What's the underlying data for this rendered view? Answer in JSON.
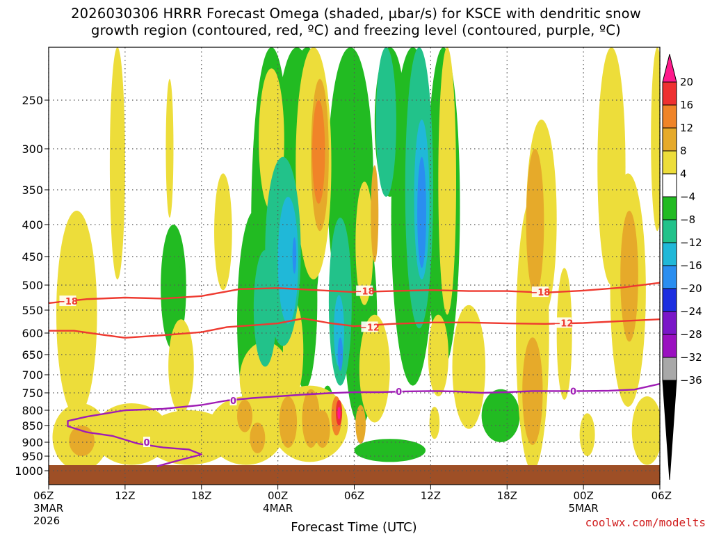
{
  "title": {
    "line1": "2026030306 HRRR Forecast Omega (shaded, µbar/s) for KSCE with dendritic snow",
    "line2": "growth region (contoured, red, ºC) and freezing level (contoured, purple, ºC)"
  },
  "credit": "coolwx.com/modelts",
  "chart_data": {
    "type": "heatmap",
    "title": "2026030306 HRRR Forecast Omega (shaded, µbar/s) for KSCE with dendritic snow growth region (contoured, red, ºC) and freezing level (contoured, purple, ºC)",
    "xlabel": "Forecast Time (UTC)",
    "ylabel": "",
    "x_forecast_hours_range": [
      0,
      48
    ],
    "y_pressure_range_hPa": [
      1000,
      200
    ],
    "y_ticks": [
      250,
      300,
      350,
      400,
      450,
      500,
      550,
      600,
      650,
      700,
      750,
      800,
      850,
      900,
      950,
      1000
    ],
    "x_ticks": [
      {
        "hour": 0,
        "label": "06Z",
        "date": "3MAR",
        "year": "2026"
      },
      {
        "hour": 6,
        "label": "12Z"
      },
      {
        "hour": 12,
        "label": "18Z"
      },
      {
        "hour": 18,
        "label": "00Z",
        "date": "4MAR"
      },
      {
        "hour": 24,
        "label": "06Z"
      },
      {
        "hour": 30,
        "label": "12Z"
      },
      {
        "hour": 36,
        "label": "18Z"
      },
      {
        "hour": 42,
        "label": "00Z",
        "date": "5MAR"
      },
      {
        "hour": 48,
        "label": "06Z"
      }
    ],
    "colorbar": {
      "levels": [
        "20",
        "16",
        "12",
        "8",
        "4",
        "−4",
        "−8",
        "−12",
        "−16",
        "−20",
        "−24",
        "−28",
        "−32",
        "−36"
      ],
      "colors": [
        "#ff1a8c",
        "#ee3030",
        "#f08428",
        "#e6aa2a",
        "#eddd3a",
        "#ffffff",
        "#22bb22",
        "#22c28a",
        "#20b8d8",
        "#2a8ef0",
        "#1c2ee0",
        "#7a16c8",
        "#9a10c0",
        "#a8a8a8",
        "#000000"
      ]
    },
    "contours": [
      {
        "name": "dendritic top",
        "value": -18,
        "label": "−18",
        "color": "#ee3a30",
        "points": [
          [
            0,
            536
          ],
          [
            3,
            528
          ],
          [
            6,
            525
          ],
          [
            9,
            527
          ],
          [
            12,
            522
          ],
          [
            15,
            508
          ],
          [
            18,
            506
          ],
          [
            21,
            510
          ],
          [
            24,
            514
          ],
          [
            27,
            512
          ],
          [
            30,
            510
          ],
          [
            33,
            512
          ],
          [
            36,
            512
          ],
          [
            39,
            515
          ],
          [
            42,
            511
          ],
          [
            45,
            505
          ],
          [
            48,
            496
          ]
        ]
      },
      {
        "name": "dendritic bottom",
        "value": -12,
        "label": "−12",
        "color": "#ee3a30",
        "points": [
          [
            0,
            595
          ],
          [
            2,
            595
          ],
          [
            4,
            603
          ],
          [
            6,
            611
          ],
          [
            9,
            605
          ],
          [
            12,
            598
          ],
          [
            14,
            587
          ],
          [
            16,
            583
          ],
          [
            18,
            579
          ],
          [
            20,
            568
          ],
          [
            22,
            578
          ],
          [
            24,
            585
          ],
          [
            27,
            580
          ],
          [
            30,
            577
          ],
          [
            33,
            577
          ],
          [
            36,
            579
          ],
          [
            39,
            580
          ],
          [
            42,
            578
          ],
          [
            45,
            574
          ],
          [
            48,
            570
          ]
        ]
      },
      {
        "name": "freezing level",
        "value": 0,
        "label": "0",
        "color": "#9f1cb5",
        "points": [
          [
            12,
            785
          ],
          [
            14,
            772
          ],
          [
            16,
            765
          ],
          [
            18,
            760
          ],
          [
            20,
            755
          ],
          [
            22,
            751
          ],
          [
            24,
            748
          ],
          [
            26,
            748
          ],
          [
            28,
            746
          ],
          [
            30,
            745
          ],
          [
            32,
            746
          ],
          [
            34,
            750
          ],
          [
            36,
            748
          ],
          [
            38,
            745
          ],
          [
            40,
            745
          ],
          [
            42,
            745
          ],
          [
            44,
            744
          ],
          [
            46,
            741
          ],
          [
            48,
            725
          ]
        ]
      },
      {
        "name": "freezing level low loop",
        "value": 0,
        "label": "0",
        "color": "#9f1cb5",
        "points": [
          [
            8.5,
            985
          ],
          [
            10,
            967
          ],
          [
            12,
            944
          ],
          [
            11,
            926
          ],
          [
            9,
            919
          ],
          [
            7,
            905
          ],
          [
            5,
            881
          ],
          [
            3,
            870
          ],
          [
            1.5,
            852
          ],
          [
            1.5,
            835
          ],
          [
            3,
            821
          ],
          [
            6,
            800
          ],
          [
            9,
            796
          ],
          [
            12,
            785
          ]
        ]
      }
    ],
    "contour_labels": [
      {
        "text": "−18",
        "hour": 1.5,
        "hPa": 532
      },
      {
        "text": "−18",
        "hour": 24.8,
        "hPa": 512
      },
      {
        "text": "−18",
        "hour": 38.6,
        "hPa": 514
      },
      {
        "text": "−12",
        "hour": 25.2,
        "hPa": 587
      },
      {
        "text": "−12",
        "hour": 40.4,
        "hPa": 578
      },
      {
        "text": "0",
        "hour": 14.5,
        "hPa": 772
      },
      {
        "text": "0",
        "hour": 27.5,
        "hPa": 746
      },
      {
        "text": "0",
        "hour": 41.2,
        "hPa": 745
      },
      {
        "text": "0",
        "hour": 7.7,
        "hPa": 900
      }
    ],
    "omega_features": [
      {
        "hour": 17.5,
        "hPa": 480,
        "rx": 1.6,
        "ry": 310,
        "value": -8
      },
      {
        "hour": 16.2,
        "hPa": 620,
        "rx": 1.4,
        "ry": 240,
        "value": -8
      },
      {
        "hour": 19.5,
        "hPa": 400,
        "rx": 1.9,
        "ry": 260,
        "value": -8
      },
      {
        "hour": 20.3,
        "hPa": 280,
        "rx": 1.5,
        "ry": 130,
        "value": -8
      },
      {
        "hour": 23.7,
        "hPa": 330,
        "rx": 1.8,
        "ry": 240,
        "value": -8
      },
      {
        "hour": 24.5,
        "hPa": 620,
        "rx": 1.3,
        "ry": 230,
        "value": -8
      },
      {
        "hour": 28.6,
        "hPa": 380,
        "rx": 1.7,
        "ry": 350,
        "value": -8
      },
      {
        "hour": 31.0,
        "hPa": 420,
        "rx": 1.3,
        "ry": 260,
        "value": -8
      },
      {
        "hour": 26.8,
        "hPa": 250,
        "rx": 1.2,
        "ry": 110,
        "value": -8
      },
      {
        "hour": 20.1,
        "hPa": 560,
        "rx": 1.0,
        "ry": 180,
        "value": -8
      },
      {
        "hour": 9.8,
        "hPa": 520,
        "rx": 1.0,
        "ry": 120,
        "value": -8
      },
      {
        "hour": 35.5,
        "hPa": 820,
        "rx": 1.5,
        "ry": 80,
        "value": -8
      },
      {
        "hour": 26.8,
        "hPa": 930,
        "rx": 2.8,
        "ry": 40,
        "value": -8
      },
      {
        "hour": 21.9,
        "hPa": 800,
        "rx": 0.5,
        "ry": 70,
        "value": -8
      },
      {
        "hour": 18.4,
        "hPa": 470,
        "rx": 1.4,
        "ry": 160,
        "value": -12
      },
      {
        "hour": 17.0,
        "hPa": 560,
        "rx": 0.9,
        "ry": 120,
        "value": -12
      },
      {
        "hour": 22.9,
        "hPa": 560,
        "rx": 0.9,
        "ry": 170,
        "value": -12
      },
      {
        "hour": 29.1,
        "hPa": 390,
        "rx": 1.1,
        "ry": 200,
        "value": -12
      },
      {
        "hour": 26.5,
        "hPa": 280,
        "rx": 0.8,
        "ry": 80,
        "value": -12
      },
      {
        "hour": 18.8,
        "hPa": 470,
        "rx": 0.8,
        "ry": 110,
        "value": -16
      },
      {
        "hour": 29.3,
        "hPa": 380,
        "rx": 0.6,
        "ry": 110,
        "value": -16
      },
      {
        "hour": 22.8,
        "hPa": 600,
        "rx": 0.4,
        "ry": 80,
        "value": -16
      },
      {
        "hour": 29.3,
        "hPa": 390,
        "rx": 0.35,
        "ry": 80,
        "value": -20
      },
      {
        "hour": 19.3,
        "hPa": 450,
        "rx": 0.15,
        "ry": 30,
        "value": -20
      },
      {
        "hour": 22.9,
        "hPa": 650,
        "rx": 0.2,
        "ry": 40,
        "value": -20
      },
      {
        "hour": 16.1,
        "hPa": 500,
        "rx": 0.7,
        "ry": 90,
        "value": -8
      },
      {
        "hour": 10.0,
        "hPa": 530,
        "rx": 0.6,
        "ry": 70,
        "value": -8
      },
      {
        "hour": 2.2,
        "hPa": 600,
        "rx": 1.6,
        "ry": 220,
        "value": 4
      },
      {
        "hour": 2.5,
        "hPa": 890,
        "rx": 2.2,
        "ry": 110,
        "value": 4
      },
      {
        "hour": 6.5,
        "hPa": 880,
        "rx": 3.0,
        "ry": 100,
        "value": 4
      },
      {
        "hour": 11.0,
        "hPa": 890,
        "rx": 3.5,
        "ry": 90,
        "value": 4
      },
      {
        "hour": 15.5,
        "hPa": 870,
        "rx": 3.0,
        "ry": 110,
        "value": 4
      },
      {
        "hour": 20.5,
        "hPa": 850,
        "rx": 3.0,
        "ry": 120,
        "value": 4
      },
      {
        "hour": 17.0,
        "hPa": 720,
        "rx": 2.0,
        "ry": 100,
        "value": 4
      },
      {
        "hour": 10.4,
        "hPa": 690,
        "rx": 1.0,
        "ry": 120,
        "value": 4
      },
      {
        "hour": 20.8,
        "hPa": 310,
        "rx": 1.4,
        "ry": 180,
        "value": 4
      },
      {
        "hour": 19.2,
        "hPa": 650,
        "rx": 0.8,
        "ry": 120,
        "value": 4
      },
      {
        "hour": 5.4,
        "hPa": 330,
        "rx": 0.6,
        "ry": 160,
        "value": 4
      },
      {
        "hour": 9.5,
        "hPa": 310,
        "rx": 0.3,
        "ry": 80,
        "value": 4
      },
      {
        "hour": 13.7,
        "hPa": 420,
        "rx": 0.7,
        "ry": 90,
        "value": 4
      },
      {
        "hour": 24.8,
        "hPa": 440,
        "rx": 0.7,
        "ry": 100,
        "value": 4
      },
      {
        "hour": 25.6,
        "hPa": 700,
        "rx": 1.2,
        "ry": 140,
        "value": 4
      },
      {
        "hour": 30.6,
        "hPa": 660,
        "rx": 0.8,
        "ry": 100,
        "value": 4
      },
      {
        "hour": 33.0,
        "hPa": 700,
        "rx": 1.3,
        "ry": 160,
        "value": 4
      },
      {
        "hour": 31.3,
        "hPa": 380,
        "rx": 0.7,
        "ry": 180,
        "value": 4
      },
      {
        "hour": 38.0,
        "hPa": 700,
        "rx": 1.3,
        "ry": 340,
        "value": 4
      },
      {
        "hour": 38.7,
        "hPa": 420,
        "rx": 1.2,
        "ry": 150,
        "value": 4
      },
      {
        "hour": 40.5,
        "hPa": 620,
        "rx": 0.6,
        "ry": 150,
        "value": 4
      },
      {
        "hour": 44.2,
        "hPa": 330,
        "rx": 1.1,
        "ry": 170,
        "value": 4
      },
      {
        "hour": 45.5,
        "hPa": 560,
        "rx": 1.4,
        "ry": 230,
        "value": 4
      },
      {
        "hour": 47.0,
        "hPa": 870,
        "rx": 1.2,
        "ry": 110,
        "value": 4
      },
      {
        "hour": 47.8,
        "hPa": 290,
        "rx": 0.5,
        "ry": 120,
        "value": 4
      },
      {
        "hour": 30.3,
        "hPa": 840,
        "rx": 0.4,
        "ry": 50,
        "value": 4
      },
      {
        "hour": 17.5,
        "hPa": 300,
        "rx": 1.0,
        "ry": 80,
        "value": 4
      },
      {
        "hour": 42.3,
        "hPa": 880,
        "rx": 0.6,
        "ry": 70,
        "value": 4
      },
      {
        "hour": 15.4,
        "hPa": 820,
        "rx": 0.6,
        "ry": 50,
        "value": 8
      },
      {
        "hour": 18.8,
        "hPa": 840,
        "rx": 0.7,
        "ry": 80,
        "value": 8
      },
      {
        "hour": 20.6,
        "hPa": 830,
        "rx": 0.7,
        "ry": 90,
        "value": 8
      },
      {
        "hour": 21.3,
        "hPa": 320,
        "rx": 0.7,
        "ry": 90,
        "value": 8
      },
      {
        "hour": 21.5,
        "hPa": 860,
        "rx": 0.6,
        "ry": 60,
        "value": 8
      },
      {
        "hour": 24.5,
        "hPa": 845,
        "rx": 0.4,
        "ry": 60,
        "value": 8
      },
      {
        "hour": 16.4,
        "hPa": 890,
        "rx": 0.6,
        "ry": 50,
        "value": 8
      },
      {
        "hour": 2.6,
        "hPa": 900,
        "rx": 1.0,
        "ry": 50,
        "value": 8
      },
      {
        "hour": 38.2,
        "hPa": 410,
        "rx": 0.7,
        "ry": 110,
        "value": 8
      },
      {
        "hour": 38.0,
        "hPa": 760,
        "rx": 0.8,
        "ry": 150,
        "value": 8
      },
      {
        "hour": 45.6,
        "hPa": 500,
        "rx": 0.7,
        "ry": 120,
        "value": 8
      },
      {
        "hour": 25.6,
        "hPa": 390,
        "rx": 0.3,
        "ry": 70,
        "value": 8
      },
      {
        "hour": 21.2,
        "hPa": 310,
        "rx": 0.5,
        "ry": 60,
        "value": 12
      },
      {
        "hour": 22.6,
        "hPa": 820,
        "rx": 0.4,
        "ry": 60,
        "value": 12
      },
      {
        "hour": 22.8,
        "hPa": 810,
        "rx": 0.25,
        "ry": 40,
        "value": 16
      },
      {
        "hour": 22.8,
        "hPa": 810,
        "rx": 0.12,
        "ry": 20,
        "value": 20
      }
    ]
  }
}
